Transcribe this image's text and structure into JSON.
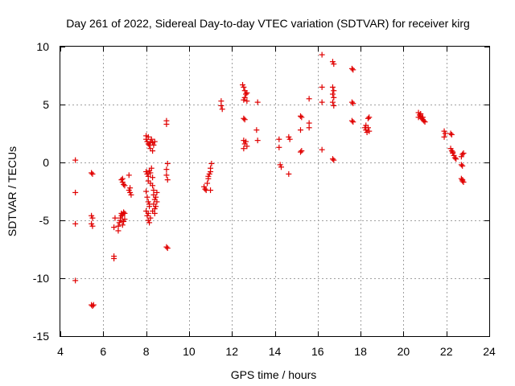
{
  "chart_data": {
    "type": "scatter",
    "title": "Day 261 of 2022, Sidereal Day-to-day VTEC variation (SDTVAR) for receiver kirg",
    "xlabel": "GPS time / hours",
    "ylabel": "SDTVAR / TECUs",
    "xlim": [
      4,
      24
    ],
    "ylim": [
      -15,
      10
    ],
    "xticks": [
      "4",
      "6",
      "8",
      "10",
      "12",
      "14",
      "16",
      "18",
      "20",
      "22",
      "24"
    ],
    "yticks": [
      "-15",
      "-10",
      "-5",
      "0",
      "5",
      "10"
    ],
    "grid": true,
    "marker": "+",
    "color": "#e00000",
    "series": [
      {
        "name": "SDTVAR",
        "points": [
          [
            4.7,
            0.2
          ],
          [
            4.7,
            -2.6
          ],
          [
            4.7,
            -5.3
          ],
          [
            4.7,
            -10.2
          ],
          [
            5.45,
            -0.9
          ],
          [
            5.5,
            -1.0
          ],
          [
            5.45,
            -4.6
          ],
          [
            5.5,
            -4.8
          ],
          [
            5.45,
            -5.3
          ],
          [
            5.5,
            -5.5
          ],
          [
            5.45,
            -12.3
          ],
          [
            5.5,
            -12.4
          ],
          [
            5.55,
            -12.3
          ],
          [
            6.5,
            -8.1
          ],
          [
            6.5,
            -8.3
          ],
          [
            6.5,
            -5.6
          ],
          [
            6.55,
            -4.8
          ],
          [
            6.7,
            -5.9
          ],
          [
            6.7,
            -5.5
          ],
          [
            6.75,
            -5.2
          ],
          [
            6.8,
            -5.0
          ],
          [
            6.8,
            -4.8
          ],
          [
            6.85,
            -4.6
          ],
          [
            6.85,
            -4.4
          ],
          [
            6.9,
            -4.5
          ],
          [
            6.95,
            -4.3
          ],
          [
            7.0,
            -4.4
          ],
          [
            6.9,
            -5.4
          ],
          [
            6.95,
            -5.1
          ],
          [
            7.0,
            -4.9
          ],
          [
            6.85,
            -1.5
          ],
          [
            6.9,
            -1.7
          ],
          [
            6.95,
            -1.9
          ],
          [
            7.0,
            -2.0
          ],
          [
            6.9,
            -1.4
          ],
          [
            7.2,
            -1.1
          ],
          [
            7.25,
            -2.2
          ],
          [
            7.25,
            -2.6
          ],
          [
            7.3,
            -2.8
          ],
          [
            7.2,
            -2.4
          ],
          [
            8.0,
            2.3
          ],
          [
            8.0,
            2.0
          ],
          [
            8.05,
            1.8
          ],
          [
            8.1,
            1.6
          ],
          [
            8.15,
            1.5
          ],
          [
            8.2,
            1.8
          ],
          [
            8.25,
            2.0
          ],
          [
            8.3,
            1.7
          ],
          [
            8.35,
            1.5
          ],
          [
            8.4,
            1.8
          ],
          [
            8.1,
            2.2
          ],
          [
            8.2,
            1.2
          ],
          [
            8.3,
            1.0
          ],
          [
            8.0,
            -0.8
          ],
          [
            8.05,
            -1.0
          ],
          [
            8.1,
            -1.2
          ],
          [
            8.15,
            -0.7
          ],
          [
            8.2,
            -0.9
          ],
          [
            8.25,
            -0.5
          ],
          [
            8.3,
            -1.3
          ],
          [
            8.1,
            -1.6
          ],
          [
            8.2,
            -1.8
          ],
          [
            8.0,
            -2.5
          ],
          [
            8.05,
            -3.0
          ],
          [
            8.1,
            -3.4
          ],
          [
            8.15,
            -3.8
          ],
          [
            8.0,
            -4.2
          ],
          [
            8.05,
            -4.6
          ],
          [
            8.1,
            -5.0
          ],
          [
            8.15,
            -5.2
          ],
          [
            8.2,
            -4.8
          ],
          [
            8.1,
            -4.4
          ],
          [
            8.15,
            -3.6
          ],
          [
            8.3,
            -2.0
          ],
          [
            8.35,
            -2.4
          ],
          [
            8.35,
            -2.8
          ],
          [
            8.4,
            -3.2
          ],
          [
            8.35,
            -3.6
          ],
          [
            8.4,
            -4.0
          ],
          [
            8.4,
            -4.4
          ],
          [
            8.45,
            -3.0
          ],
          [
            8.45,
            -3.8
          ],
          [
            8.3,
            -4.2
          ],
          [
            8.5,
            -3.4
          ],
          [
            8.5,
            -2.6
          ],
          [
            8.95,
            3.6
          ],
          [
            8.95,
            3.3
          ],
          [
            9.0,
            -0.1
          ],
          [
            8.95,
            -0.6
          ],
          [
            8.95,
            -1.1
          ],
          [
            9.0,
            -1.5
          ],
          [
            8.95,
            -7.3
          ],
          [
            9.0,
            -7.4
          ],
          [
            10.7,
            -2.1
          ],
          [
            10.75,
            -2.3
          ],
          [
            10.8,
            -2.4
          ],
          [
            10.85,
            -1.8
          ],
          [
            10.9,
            -1.4
          ],
          [
            10.95,
            -1.0
          ],
          [
            11.0,
            -0.5
          ],
          [
            11.05,
            -0.1
          ],
          [
            11.0,
            -0.8
          ],
          [
            10.9,
            -1.2
          ],
          [
            11.0,
            -2.4
          ],
          [
            11.5,
            5.3
          ],
          [
            11.5,
            4.9
          ],
          [
            11.55,
            4.6
          ],
          [
            12.5,
            6.7
          ],
          [
            12.55,
            6.5
          ],
          [
            12.6,
            6.2
          ],
          [
            12.65,
            5.9
          ],
          [
            12.6,
            5.6
          ],
          [
            12.7,
            5.3
          ],
          [
            12.55,
            5.4
          ],
          [
            12.7,
            6.0
          ],
          [
            12.55,
            3.8
          ],
          [
            12.6,
            3.7
          ],
          [
            12.55,
            1.9
          ],
          [
            12.6,
            1.6
          ],
          [
            12.65,
            1.8
          ],
          [
            12.7,
            1.4
          ],
          [
            12.55,
            1.2
          ],
          [
            13.2,
            5.2
          ],
          [
            13.15,
            2.8
          ],
          [
            13.2,
            1.9
          ],
          [
            14.2,
            2.0
          ],
          [
            14.2,
            1.3
          ],
          [
            14.25,
            -0.2
          ],
          [
            14.3,
            -0.4
          ],
          [
            14.65,
            2.2
          ],
          [
            14.7,
            2.0
          ],
          [
            14.65,
            -1.0
          ],
          [
            15.2,
            4.0
          ],
          [
            15.25,
            3.9
          ],
          [
            15.2,
            2.8
          ],
          [
            15.2,
            0.9
          ],
          [
            15.25,
            1.0
          ],
          [
            15.6,
            5.5
          ],
          [
            15.6,
            3.4
          ],
          [
            15.6,
            3.0
          ],
          [
            16.2,
            9.3
          ],
          [
            16.2,
            6.5
          ],
          [
            16.2,
            5.2
          ],
          [
            16.2,
            1.1
          ],
          [
            16.7,
            8.7
          ],
          [
            16.75,
            8.5
          ],
          [
            16.7,
            6.5
          ],
          [
            16.75,
            6.2
          ],
          [
            16.7,
            5.9
          ],
          [
            16.75,
            5.6
          ],
          [
            16.7,
            5.2
          ],
          [
            16.75,
            4.9
          ],
          [
            16.7,
            0.3
          ],
          [
            16.75,
            0.2
          ],
          [
            17.6,
            8.1
          ],
          [
            17.65,
            8.0
          ],
          [
            17.6,
            5.2
          ],
          [
            17.65,
            5.1
          ],
          [
            17.6,
            3.6
          ],
          [
            17.65,
            3.5
          ],
          [
            18.2,
            3.0
          ],
          [
            18.25,
            2.8
          ],
          [
            18.3,
            2.6
          ],
          [
            18.35,
            3.0
          ],
          [
            18.4,
            2.7
          ],
          [
            18.25,
            3.2
          ],
          [
            18.35,
            3.8
          ],
          [
            18.4,
            3.9
          ],
          [
            20.7,
            4.3
          ],
          [
            20.75,
            4.1
          ],
          [
            20.8,
            4.0
          ],
          [
            20.85,
            3.8
          ],
          [
            20.9,
            3.7
          ],
          [
            20.95,
            3.6
          ],
          [
            20.8,
            4.2
          ],
          [
            20.9,
            3.9
          ],
          [
            20.7,
            3.9
          ],
          [
            21.0,
            3.5
          ],
          [
            21.9,
            2.7
          ],
          [
            21.95,
            2.5
          ],
          [
            21.9,
            2.2
          ],
          [
            22.2,
            2.5
          ],
          [
            22.25,
            2.4
          ],
          [
            22.2,
            1.2
          ],
          [
            22.25,
            1.0
          ],
          [
            22.3,
            0.8
          ],
          [
            22.35,
            0.6
          ],
          [
            22.4,
            0.4
          ],
          [
            22.45,
            0.3
          ],
          [
            22.3,
            0.9
          ],
          [
            22.7,
            0.5
          ],
          [
            22.75,
            0.7
          ],
          [
            22.8,
            0.8
          ],
          [
            22.7,
            -0.2
          ],
          [
            22.75,
            -0.3
          ],
          [
            22.7,
            -1.4
          ],
          [
            22.75,
            -1.6
          ],
          [
            22.8,
            -1.7
          ],
          [
            22.75,
            -1.5
          ]
        ]
      }
    ]
  }
}
